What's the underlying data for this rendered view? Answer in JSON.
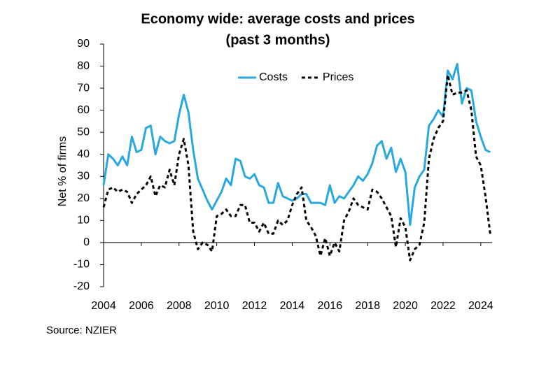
{
  "chart_data": {
    "type": "line",
    "title": "Economy wide: average costs and prices",
    "subtitle": "(past 3 months)",
    "y_label": "Net % of firms",
    "source": "Source: NZIER",
    "x": [
      2004,
      2004.25,
      2004.5,
      2004.75,
      2005,
      2005.25,
      2005.5,
      2005.75,
      2006,
      2006.25,
      2006.5,
      2006.75,
      2007,
      2007.25,
      2007.5,
      2007.75,
      2008,
      2008.25,
      2008.5,
      2008.75,
      2009,
      2009.25,
      2009.5,
      2009.75,
      2010,
      2010.25,
      2010.5,
      2010.75,
      2011,
      2011.25,
      2011.5,
      2011.75,
      2012,
      2012.25,
      2012.5,
      2012.75,
      2013,
      2013.25,
      2013.5,
      2013.75,
      2014,
      2014.25,
      2014.5,
      2014.75,
      2015,
      2015.25,
      2015.5,
      2015.75,
      2016,
      2016.25,
      2016.5,
      2016.75,
      2017,
      2017.25,
      2017.5,
      2017.75,
      2018,
      2018.25,
      2018.5,
      2018.75,
      2019,
      2019.25,
      2019.5,
      2019.75,
      2020,
      2020.25,
      2020.5,
      2020.75,
      2021,
      2021.25,
      2021.5,
      2021.75,
      2022,
      2022.25,
      2022.5,
      2022.75,
      2023,
      2023.25,
      2023.5,
      2023.75,
      2024,
      2024.25,
      2024.5
    ],
    "series": [
      {
        "name": "Costs",
        "color": "#29a8e0",
        "line_style": "solid",
        "values": [
          26,
          40,
          38,
          35,
          39,
          35,
          48,
          41,
          42,
          52,
          53,
          40,
          48,
          46,
          45,
          46,
          58,
          67,
          59,
          42,
          29,
          24,
          19,
          15,
          19,
          23,
          29,
          26,
          38,
          37,
          30,
          29,
          31,
          26,
          25,
          18,
          18,
          27,
          21,
          20,
          19,
          20,
          22,
          22,
          18,
          18,
          18,
          17,
          26,
          18,
          21,
          20,
          23,
          26,
          30,
          28,
          31,
          36,
          44,
          46,
          38,
          43,
          32,
          38,
          32,
          8,
          25,
          30,
          33,
          53,
          56,
          60,
          57,
          78,
          74,
          81,
          63,
          70,
          69,
          55,
          48,
          42,
          41
        ]
      },
      {
        "name": "Prices",
        "color": "#000000",
        "line_style": "dashed",
        "values": [
          16,
          24,
          25,
          23,
          24,
          23,
          18,
          22,
          24,
          26,
          30,
          21,
          26,
          25,
          33,
          26,
          40,
          47,
          35,
          5,
          -3,
          0,
          -1,
          -4,
          12,
          13,
          15,
          12,
          12,
          17,
          17,
          9,
          9,
          5,
          9,
          4,
          4,
          10,
          8,
          10,
          17,
          22,
          25,
          10,
          7,
          3,
          -6,
          2,
          -6,
          0,
          -4,
          10,
          14,
          20,
          17,
          16,
          15,
          24,
          23,
          20,
          16,
          12,
          -2,
          11,
          7,
          -8,
          -3,
          -1,
          9,
          38,
          47,
          52,
          55,
          76,
          67,
          68,
          68,
          69,
          60,
          39,
          35,
          21,
          4
        ]
      }
    ],
    "xlim": [
      2004,
      2024.6
    ],
    "xticks": [
      2004,
      2006,
      2008,
      2010,
      2012,
      2014,
      2016,
      2018,
      2020,
      2022,
      2024
    ],
    "ylim": [
      -20,
      90
    ],
    "yticks": [
      -20,
      -10,
      0,
      10,
      20,
      30,
      40,
      50,
      60,
      70,
      80,
      90
    ],
    "legend": "top-center"
  }
}
